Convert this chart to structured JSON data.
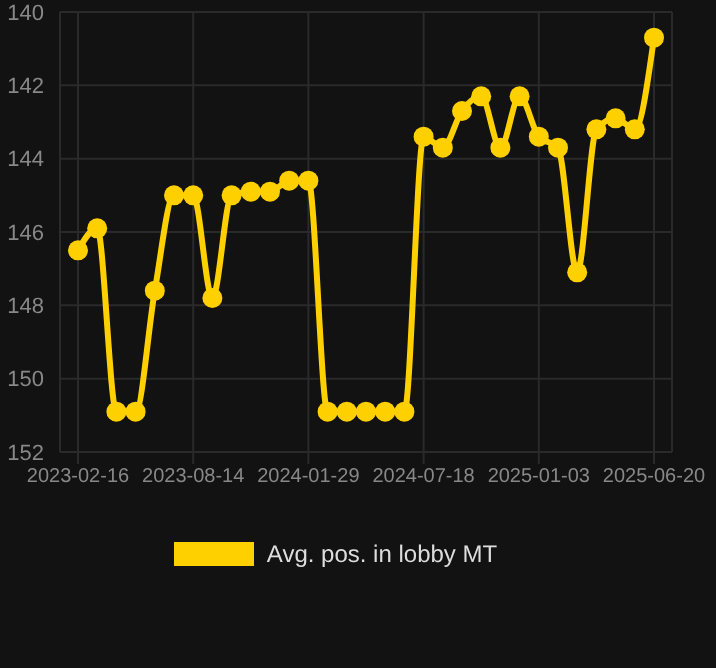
{
  "chart_data": {
    "type": "line",
    "categories": [
      "2023-02-16",
      null,
      null,
      null,
      null,
      null,
      "2023-08-14",
      null,
      null,
      null,
      null,
      null,
      "2024-01-29",
      null,
      null,
      null,
      null,
      null,
      "2024-07-18",
      null,
      null,
      null,
      null,
      null,
      "2025-01-03",
      null,
      null,
      null,
      null,
      null,
      "2025-06-20"
    ],
    "series": [
      {
        "name": "Avg. pos. in lobby MT",
        "color": "#ffd000",
        "values": [
          146.5,
          145.9,
          150.9,
          150.9,
          147.6,
          145.0,
          145.0,
          147.8,
          145.0,
          144.9,
          144.9,
          144.6,
          144.6,
          150.9,
          150.9,
          150.9,
          150.9,
          150.9,
          143.4,
          143.7,
          142.7,
          142.3,
          143.7,
          142.3,
          143.4,
          143.7,
          147.1,
          143.2,
          142.9,
          143.2,
          140.7
        ]
      }
    ],
    "ylim": [
      152,
      140
    ],
    "yticks": [
      140,
      142,
      144,
      146,
      148,
      150,
      152
    ],
    "grid": true,
    "legend": "bottom",
    "marker": "circle",
    "line_style": "solid"
  }
}
